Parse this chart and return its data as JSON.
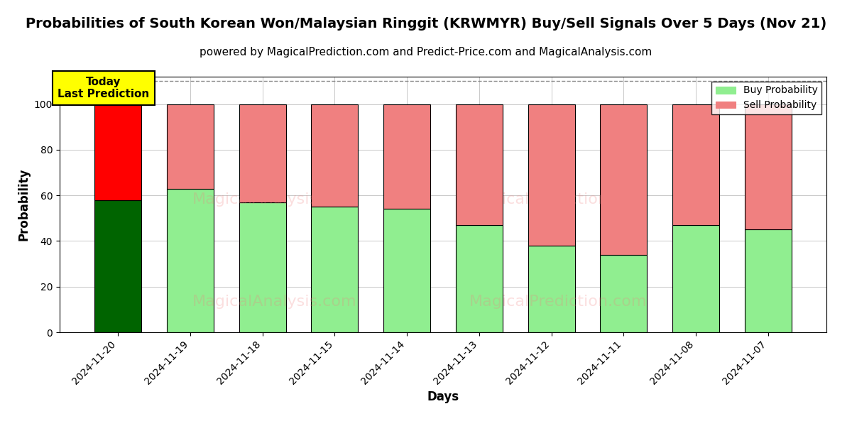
{
  "title": "Probabilities of South Korean Won/Malaysian Ringgit (KRWMYR) Buy/Sell Signals Over 5 Days (Nov 21)",
  "subtitle": "powered by MagicalPrediction.com and Predict-Price.com and MagicalAnalysis.com",
  "xlabel": "Days",
  "ylabel": "Probability",
  "categories": [
    "2024-11-20",
    "2024-11-19",
    "2024-11-18",
    "2024-11-15",
    "2024-11-14",
    "2024-11-13",
    "2024-11-12",
    "2024-11-11",
    "2024-11-08",
    "2024-11-07"
  ],
  "buy_values": [
    58,
    63,
    57,
    55,
    54,
    47,
    38,
    34,
    47,
    45
  ],
  "sell_values": [
    42,
    37,
    43,
    45,
    46,
    53,
    62,
    66,
    53,
    55
  ],
  "buy_color_today": "#006400",
  "sell_color_today": "#ff0000",
  "buy_color_normal": "#90EE90",
  "sell_color_normal": "#F08080",
  "bar_edge_color": "#000000",
  "ylim_max": 112,
  "yticks": [
    0,
    20,
    40,
    60,
    80,
    100
  ],
  "dashed_line_y": 110,
  "annotation_text": "Today\nLast Prediction",
  "annotation_bg": "#ffff00",
  "legend_buy": "Buy Probability",
  "legend_sell": "Sell Probability",
  "watermark_left": "MagicalAnalysis.com",
  "watermark_right": "MagicalPrediction.com",
  "watermark_bottom_left": "MagicalAnalysis.com",
  "watermark_bottom_right": "MagicalPrediction.com",
  "title_fontsize": 14,
  "subtitle_fontsize": 11,
  "axis_label_fontsize": 12,
  "tick_fontsize": 10,
  "bar_width": 0.65
}
